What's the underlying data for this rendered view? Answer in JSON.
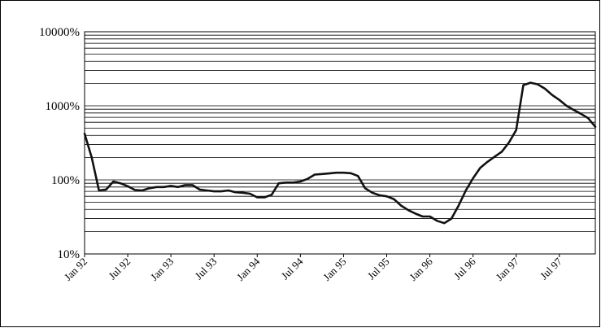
{
  "chart_data": {
    "type": "line",
    "title": "",
    "xlabel": "",
    "ylabel": "",
    "y_scale": "log",
    "ylim": [
      10,
      10000
    ],
    "grid": true,
    "legend": "none",
    "y_ticks": [
      {
        "value": 10,
        "label": "10%"
      },
      {
        "value": 100,
        "label": "100%"
      },
      {
        "value": 1000,
        "label": "1000%"
      },
      {
        "value": 10000,
        "label": "10000%"
      }
    ],
    "x_ticks": [
      "Jan 92",
      "Jul 92",
      "Jan 93",
      "Jul 93",
      "Jan 94",
      "Jul 94",
      "Jan 95",
      "Jul 95",
      "Jan 96",
      "Jul 96",
      "Jan 97",
      "Jul 97"
    ],
    "x_range": [
      "1992-01",
      "1997-12"
    ],
    "series": [
      {
        "color": "#111111",
        "points": [
          [
            "1992-01",
            420
          ],
          [
            "1992-02",
            200
          ],
          [
            "1992-03",
            72
          ],
          [
            "1992-04",
            74
          ],
          [
            "1992-05",
            95
          ],
          [
            "1992-06",
            90
          ],
          [
            "1992-07",
            82
          ],
          [
            "1992-08",
            73
          ],
          [
            "1992-09",
            72
          ],
          [
            "1992-10",
            77
          ],
          [
            "1992-11",
            80
          ],
          [
            "1992-12",
            80
          ],
          [
            "1993-01",
            83
          ],
          [
            "1993-02",
            80
          ],
          [
            "1993-03",
            85
          ],
          [
            "1993-04",
            85
          ],
          [
            "1993-05",
            74
          ],
          [
            "1993-06",
            72
          ],
          [
            "1993-07",
            70
          ],
          [
            "1993-08",
            70
          ],
          [
            "1993-09",
            72
          ],
          [
            "1993-10",
            68
          ],
          [
            "1993-11",
            67
          ],
          [
            "1993-12",
            65
          ],
          [
            "1994-01",
            58
          ],
          [
            "1994-02",
            58
          ],
          [
            "1994-03",
            63
          ],
          [
            "1994-04",
            90
          ],
          [
            "1994-05",
            92
          ],
          [
            "1994-06",
            92
          ],
          [
            "1994-07",
            95
          ],
          [
            "1994-08",
            103
          ],
          [
            "1994-09",
            118
          ],
          [
            "1994-10",
            120
          ],
          [
            "1994-11",
            122
          ],
          [
            "1994-12",
            125
          ],
          [
            "1995-01",
            125
          ],
          [
            "1995-02",
            123
          ],
          [
            "1995-03",
            113
          ],
          [
            "1995-04",
            77
          ],
          [
            "1995-05",
            67
          ],
          [
            "1995-06",
            62
          ],
          [
            "1995-07",
            60
          ],
          [
            "1995-08",
            55
          ],
          [
            "1995-09",
            45
          ],
          [
            "1995-10",
            39
          ],
          [
            "1995-11",
            35
          ],
          [
            "1995-12",
            32
          ],
          [
            "1996-01",
            32
          ],
          [
            "1996-02",
            28
          ],
          [
            "1996-03",
            26
          ],
          [
            "1996-04",
            30
          ],
          [
            "1996-05",
            45
          ],
          [
            "1996-06",
            72
          ],
          [
            "1996-07",
            105
          ],
          [
            "1996-08",
            145
          ],
          [
            "1996-09",
            175
          ],
          [
            "1996-10",
            205
          ],
          [
            "1996-11",
            240
          ],
          [
            "1996-12",
            320
          ],
          [
            "1997-01",
            470
          ],
          [
            "1997-02",
            1900
          ],
          [
            "1997-03",
            2050
          ],
          [
            "1997-04",
            1950
          ],
          [
            "1997-05",
            1700
          ],
          [
            "1997-06",
            1400
          ],
          [
            "1997-07",
            1200
          ],
          [
            "1997-08",
            1000
          ],
          [
            "1997-09",
            880
          ],
          [
            "1997-10",
            780
          ],
          [
            "1997-11",
            680
          ],
          [
            "1997-12",
            520
          ]
        ]
      }
    ]
  }
}
